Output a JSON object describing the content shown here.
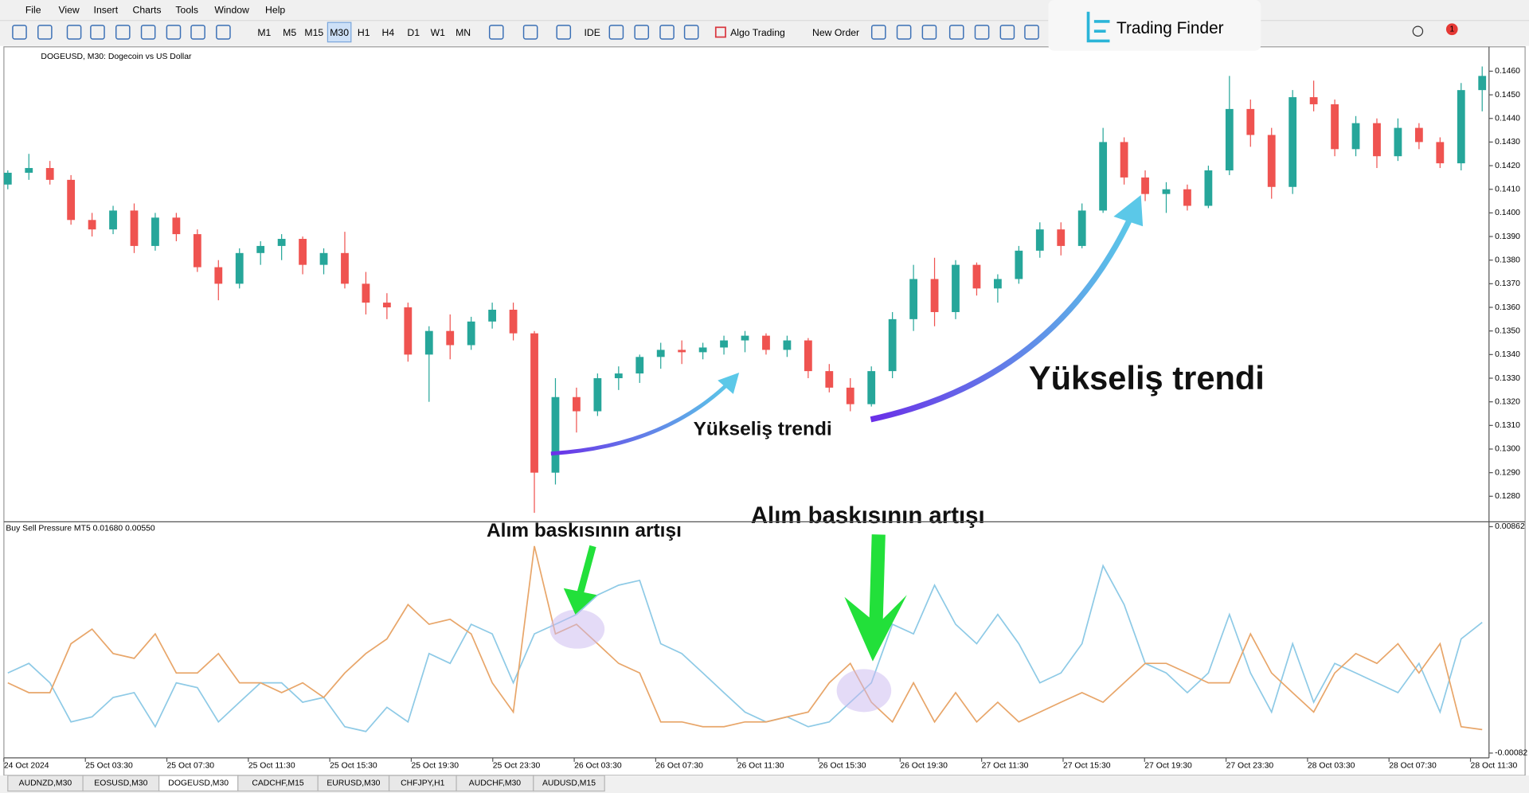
{
  "menu": [
    "File",
    "View",
    "Insert",
    "Charts",
    "Tools",
    "Window",
    "Help"
  ],
  "toolbar": {
    "timeframes": [
      "M1",
      "M5",
      "M15",
      "M30",
      "H1",
      "H4",
      "D1",
      "W1",
      "MN"
    ],
    "active_timeframe_index": 3,
    "ide": "IDE",
    "algo_trading": "Algo Trading",
    "new_order": "New Order",
    "notification_count": 1
  },
  "logo": "Trading Finder",
  "chart_data": [
    {
      "type": "candlestick",
      "title": "DOGEUSD, M30:  Dogecoin vs US Dollar",
      "up_color": "#26a69a",
      "down_color": "#ef5350",
      "ohlc": [
        [
          0.1412,
          0.1418,
          0.141,
          0.1417
        ],
        [
          0.1417,
          0.1425,
          0.1414,
          0.1419
        ],
        [
          0.1419,
          0.1422,
          0.1412,
          0.1414
        ],
        [
          0.1414,
          0.1416,
          0.1395,
          0.1397
        ],
        [
          0.1397,
          0.14,
          0.139,
          0.1393
        ],
        [
          0.1393,
          0.1403,
          0.1391,
          0.1401
        ],
        [
          0.1401,
          0.1404,
          0.1383,
          0.1386
        ],
        [
          0.1386,
          0.14,
          0.1384,
          0.1398
        ],
        [
          0.1398,
          0.14,
          0.1388,
          0.1391
        ],
        [
          0.1391,
          0.1393,
          0.1375,
          0.1377
        ],
        [
          0.1377,
          0.138,
          0.1363,
          0.137
        ],
        [
          0.137,
          0.1385,
          0.1368,
          0.1383
        ],
        [
          0.1383,
          0.1388,
          0.1378,
          0.1386
        ],
        [
          0.1386,
          0.1391,
          0.138,
          0.1389
        ],
        [
          0.1389,
          0.139,
          0.1374,
          0.1378
        ],
        [
          0.1378,
          0.1385,
          0.1374,
          0.1383
        ],
        [
          0.1383,
          0.1392,
          0.1368,
          0.137
        ],
        [
          0.137,
          0.1375,
          0.1357,
          0.1362
        ],
        [
          0.1362,
          0.1366,
          0.1355,
          0.136
        ],
        [
          0.136,
          0.1362,
          0.1337,
          0.134
        ],
        [
          0.134,
          0.1352,
          0.132,
          0.135
        ],
        [
          0.135,
          0.1357,
          0.1338,
          0.1344
        ],
        [
          0.1344,
          0.1356,
          0.1342,
          0.1354
        ],
        [
          0.1354,
          0.1362,
          0.1351,
          0.1359
        ],
        [
          0.1359,
          0.1362,
          0.1346,
          0.1349
        ],
        [
          0.1349,
          0.135,
          0.1273,
          0.129
        ],
        [
          0.129,
          0.133,
          0.1285,
          0.1322
        ],
        [
          0.1322,
          0.1326,
          0.1307,
          0.1316
        ],
        [
          0.1316,
          0.1332,
          0.1314,
          0.133
        ],
        [
          0.133,
          0.1335,
          0.1325,
          0.1332
        ],
        [
          0.1332,
          0.134,
          0.1328,
          0.1339
        ],
        [
          0.1339,
          0.1345,
          0.1334,
          0.1342
        ],
        [
          0.1342,
          0.1346,
          0.1336,
          0.1341
        ],
        [
          0.1341,
          0.1345,
          0.1338,
          0.1343
        ],
        [
          0.1343,
          0.1348,
          0.134,
          0.1346
        ],
        [
          0.1346,
          0.135,
          0.1341,
          0.1348
        ],
        [
          0.1348,
          0.1349,
          0.134,
          0.1342
        ],
        [
          0.1342,
          0.1348,
          0.1339,
          0.1346
        ],
        [
          0.1346,
          0.1347,
          0.133,
          0.1333
        ],
        [
          0.1333,
          0.1336,
          0.1324,
          0.1326
        ],
        [
          0.1326,
          0.133,
          0.1316,
          0.1319
        ],
        [
          0.1319,
          0.1335,
          0.1318,
          0.1333
        ],
        [
          0.1333,
          0.1358,
          0.133,
          0.1355
        ],
        [
          0.1355,
          0.1378,
          0.135,
          0.1372
        ],
        [
          0.1372,
          0.1381,
          0.1352,
          0.1358
        ],
        [
          0.1358,
          0.138,
          0.1355,
          0.1378
        ],
        [
          0.1378,
          0.1379,
          0.1365,
          0.1368
        ],
        [
          0.1368,
          0.1374,
          0.1362,
          0.1372
        ],
        [
          0.1372,
          0.1386,
          0.137,
          0.1384
        ],
        [
          0.1384,
          0.1396,
          0.1381,
          0.1393
        ],
        [
          0.1393,
          0.1396,
          0.1382,
          0.1386
        ],
        [
          0.1386,
          0.1404,
          0.1385,
          0.1401
        ],
        [
          0.1401,
          0.1436,
          0.14,
          0.143
        ],
        [
          0.143,
          0.1432,
          0.1412,
          0.1415
        ],
        [
          0.1415,
          0.1418,
          0.1405,
          0.1408
        ],
        [
          0.1408,
          0.1413,
          0.14,
          0.141
        ],
        [
          0.141,
          0.1412,
          0.1401,
          0.1403
        ],
        [
          0.1403,
          0.142,
          0.1402,
          0.1418
        ],
        [
          0.1418,
          0.1458,
          0.1416,
          0.1444
        ],
        [
          0.1444,
          0.1448,
          0.1428,
          0.1433
        ],
        [
          0.1433,
          0.1436,
          0.1406,
          0.1411
        ],
        [
          0.1411,
          0.1452,
          0.1408,
          0.1449
        ],
        [
          0.1449,
          0.1456,
          0.1443,
          0.1446
        ],
        [
          0.1446,
          0.1448,
          0.1424,
          0.1427
        ],
        [
          0.1427,
          0.1441,
          0.1424,
          0.1438
        ],
        [
          0.1438,
          0.144,
          0.1419,
          0.1424
        ],
        [
          0.1424,
          0.144,
          0.1422,
          0.1436
        ],
        [
          0.1436,
          0.1438,
          0.1427,
          0.143
        ],
        [
          0.143,
          0.1432,
          0.1419,
          0.1421
        ],
        [
          0.1421,
          0.1455,
          0.1418,
          0.1452
        ],
        [
          0.1452,
          0.1462,
          0.1443,
          0.1458
        ]
      ],
      "ylim": [
        0.127,
        0.14695
      ],
      "yticks": [
        {
          "value": 0.128,
          "label": "0.1280"
        },
        {
          "value": 0.129,
          "label": "0.1290"
        },
        {
          "value": 0.13,
          "label": "0.1300"
        },
        {
          "value": 0.131,
          "label": "0.1310"
        },
        {
          "value": 0.132,
          "label": "0.1320"
        },
        {
          "value": 0.133,
          "label": "0.1330"
        },
        {
          "value": 0.134,
          "label": "0.1340"
        },
        {
          "value": 0.135,
          "label": "0.1350"
        },
        {
          "value": 0.136,
          "label": "0.1360"
        },
        {
          "value": 0.137,
          "label": "0.1370"
        },
        {
          "value": 0.138,
          "label": "0.1380"
        },
        {
          "value": 0.139,
          "label": "0.1390"
        },
        {
          "value": 0.14,
          "label": "0.1400"
        },
        {
          "value": 0.141,
          "label": "0.1410"
        },
        {
          "value": 0.142,
          "label": "0.1420"
        },
        {
          "value": 0.143,
          "label": "0.1430"
        },
        {
          "value": 0.144,
          "label": "0.1440"
        },
        {
          "value": 0.145,
          "label": "0.1450"
        },
        {
          "value": 0.146,
          "label": "0.1460"
        }
      ],
      "annotations": [
        "Yükseliş trendi",
        "Yükseliş trendi"
      ]
    },
    {
      "type": "line",
      "title": "Buy Sell Pressure MT5 0.01680 0.00550",
      "series": [
        {
          "color": "#8ecae6",
          "values": [
            0.00252,
            0.00292,
            0.00211,
            0.00048,
            0.00069,
            0.0015,
            0.0017,
            0.00028,
            0.00211,
            0.00191,
            0.00048,
            0.0013,
            0.00211,
            0.00211,
            0.0013,
            0.0015,
            0.00028,
            8e-05,
            0.00109,
            0.00048,
            0.00333,
            0.00292,
            0.00455,
            0.00415,
            0.00211,
            0.00415,
            0.00455,
            0.00496,
            0.00577,
            0.00618,
            0.00638,
            0.00374,
            0.00333,
            0.00252,
            0.0017,
            0.00089,
            0.00048,
            0.00069,
            0.00028,
            0.00048,
            0.0013,
            0.00211,
            0.00455,
            0.00415,
            0.00618,
            0.00455,
            0.00374,
            0.00496,
            0.00374,
            0.00211,
            0.00252,
            0.00374,
            0.00699,
            0.00537,
            0.00292,
            0.00252,
            0.0017,
            0.00252,
            0.00496,
            0.00252,
            0.00089,
            0.00374,
            0.0013,
            0.00292,
            0.00252,
            0.00211,
            0.0017,
            0.00292,
            0.00089,
            0.00394,
            0.00463
          ]
        },
        {
          "color": "#e8a66a",
          "values": [
            0.00211,
            0.0017,
            0.0017,
            0.00374,
            0.00435,
            0.00333,
            0.00313,
            0.00415,
            0.00252,
            0.00252,
            0.00333,
            0.00211,
            0.00211,
            0.0017,
            0.00211,
            0.0015,
            0.00252,
            0.00333,
            0.00394,
            0.00537,
            0.00455,
            0.00476,
            0.00415,
            0.00211,
            0.00089,
            0.00781,
            0.00415,
            0.00455,
            0.00374,
            0.00292,
            0.00252,
            0.00048,
            0.00048,
            0.00028,
            0.00028,
            0.00048,
            0.00048,
            0.00069,
            0.00089,
            0.00211,
            0.00292,
            0.0013,
            0.00048,
            0.00211,
            0.00048,
            0.0017,
            0.00048,
            0.0013,
            0.00048,
            0.00089,
            0.0013,
            0.0017,
            0.0013,
            0.00211,
            0.00292,
            0.00292,
            0.00252,
            0.00211,
            0.00211,
            0.00415,
            0.00252,
            0.0017,
            0.00089,
            0.00252,
            0.00333,
            0.00292,
            0.00374,
            0.00252,
            0.00374,
            0.00028,
            0.00016
          ]
        }
      ],
      "ylim": [
        -0.00102,
        0.00874
      ],
      "yticks": [
        0.00862,
        -0.00082
      ],
      "x_labels": [
        "24 Oct 2024",
        "25 Oct 03:30",
        "25 Oct 07:30",
        "25 Oct 11:30",
        "25 Oct 15:30",
        "25 Oct 19:30",
        "25 Oct 23:30",
        "26 Oct 03:30",
        "26 Oct 07:30",
        "26 Oct 11:30",
        "26 Oct 15:30",
        "26 Oct 19:30",
        "27 Oct 11:30",
        "27 Oct 15:30",
        "27 Oct 19:30",
        "27 Oct 23:30",
        "28 Oct 03:30",
        "28 Oct 07:30",
        "28 Oct 11:30"
      ],
      "annotations": [
        "Alım baskısının artışı",
        "Alım baskısının artışı"
      ]
    }
  ],
  "tabs": [
    "AUDNZD,M30",
    "EOSUSD,M30",
    "DOGEUSD,M30",
    "CADCHF,M15",
    "EURUSD,M30",
    "CHFJPY,H1",
    "AUDCHF,M30",
    "AUDUSD,M15"
  ],
  "active_tab_index": 2
}
